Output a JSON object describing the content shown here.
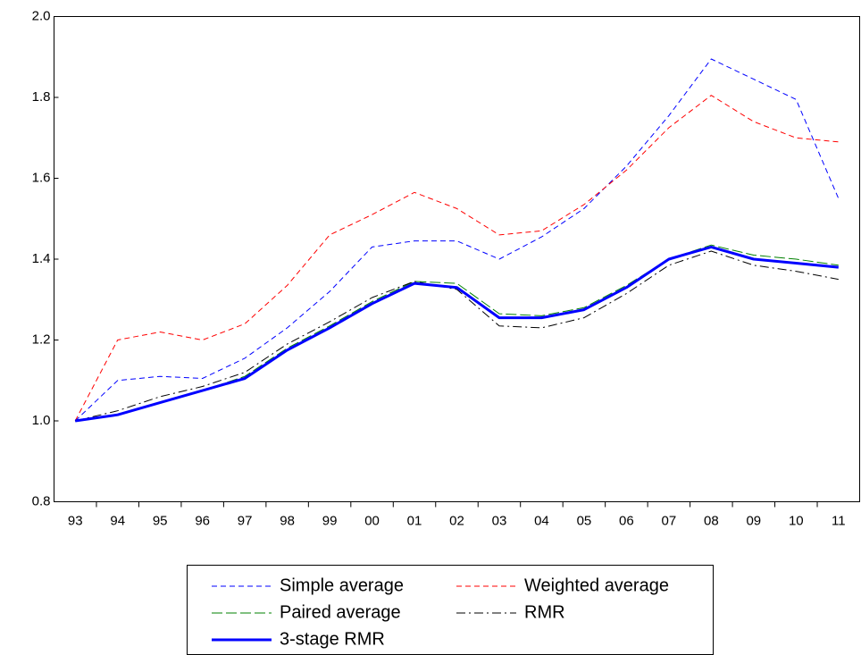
{
  "chart_data": {
    "type": "line",
    "categories": [
      "93",
      "94",
      "95",
      "96",
      "97",
      "98",
      "99",
      "00",
      "01",
      "02",
      "03",
      "04",
      "05",
      "06",
      "07",
      "08",
      "09",
      "10",
      "11"
    ],
    "ylim": [
      0.8,
      2.0
    ],
    "yticks": [
      0.8,
      {
        "value": 1.0,
        "label": "1.0"
      },
      1.2,
      1.4,
      1.6,
      1.8,
      {
        "value": 2.0,
        "label": "2.0"
      }
    ],
    "series": [
      {
        "name": "Simple average",
        "color": "#0000ff",
        "line_style": "dashed",
        "linewidth": 1,
        "values": [
          1.0,
          1.1,
          1.11,
          1.105,
          1.155,
          1.23,
          1.32,
          1.43,
          1.445,
          1.445,
          1.4,
          1.455,
          1.525,
          1.63,
          1.755,
          1.895,
          1.845,
          1.795,
          1.55
        ]
      },
      {
        "name": "Weighted average",
        "color": "#ff0000",
        "line_style": "dashed",
        "linewidth": 1,
        "values": [
          1.0,
          1.2,
          1.22,
          1.2,
          1.24,
          1.335,
          1.46,
          1.51,
          1.565,
          1.525,
          1.46,
          1.47,
          1.535,
          1.62,
          1.725,
          1.805,
          1.74,
          1.7,
          1.69
        ]
      },
      {
        "name": "Paired average",
        "color": "#008000",
        "line_style": "long-dashed",
        "linewidth": 1,
        "values": [
          1.0,
          1.015,
          1.045,
          1.075,
          1.11,
          1.18,
          1.235,
          1.295,
          1.345,
          1.34,
          1.265,
          1.26,
          1.28,
          1.335,
          1.4,
          1.435,
          1.41,
          1.4,
          1.385
        ]
      },
      {
        "name": "RMR",
        "color": "#000000",
        "line_style": "dash-dot",
        "linewidth": 1,
        "values": [
          1.0,
          1.025,
          1.06,
          1.085,
          1.12,
          1.19,
          1.245,
          1.305,
          1.345,
          1.325,
          1.235,
          1.23,
          1.255,
          1.315,
          1.385,
          1.42,
          1.385,
          1.37,
          1.35
        ]
      },
      {
        "name": "3-stage RMR",
        "color": "#0000ff",
        "line_style": "solid",
        "linewidth": 3,
        "values": [
          1.0,
          1.015,
          1.045,
          1.075,
          1.105,
          1.175,
          1.23,
          1.29,
          1.34,
          1.33,
          1.255,
          1.255,
          1.275,
          1.33,
          1.4,
          1.43,
          1.4,
          1.39,
          1.38
        ]
      }
    ]
  }
}
